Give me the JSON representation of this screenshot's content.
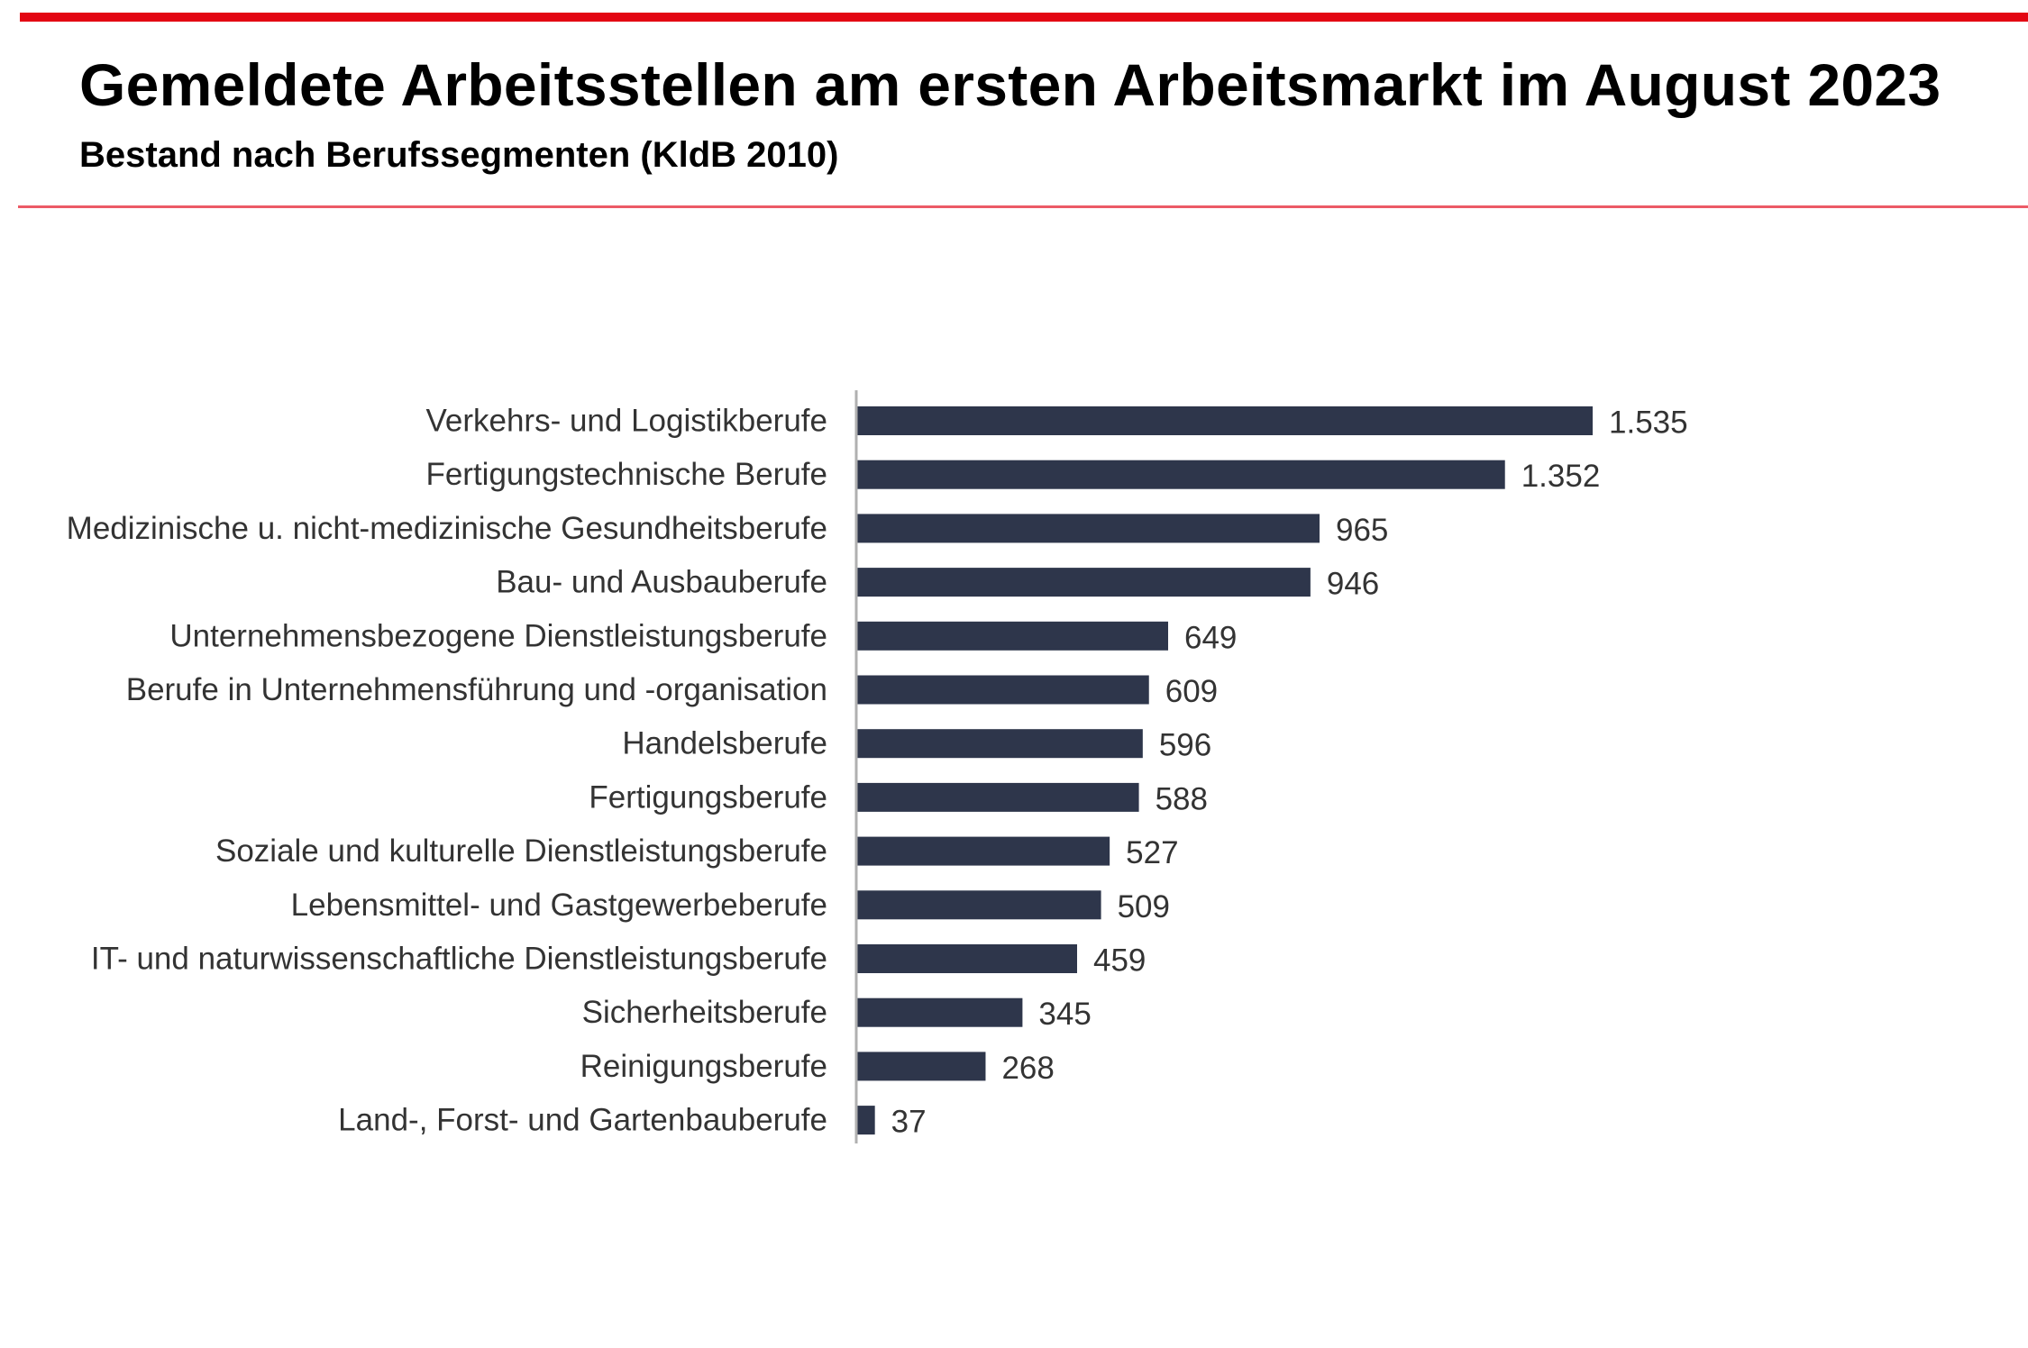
{
  "header": {
    "title": "Gemeldete Arbeitsstellen am ersten Arbeitsmarkt im August 2023",
    "subtitle": "Bestand nach Berufssegmenten (KldB 2010)"
  },
  "colors": {
    "accent": "#e30613",
    "divider": "#ec5a66",
    "bar": "#2e364b",
    "axis": "#b0b0b0",
    "text": "#333333"
  },
  "chart_data": {
    "type": "bar",
    "orientation": "horizontal",
    "title": "Gemeldete Arbeitsstellen am ersten Arbeitsmarkt im August 2023",
    "subtitle": "Bestand nach Berufssegmenten (KldB 2010)",
    "xlabel": "",
    "ylabel": "",
    "xlim": [
      0,
      1535
    ],
    "grid": false,
    "categories": [
      "Verkehrs- und Logistikberufe",
      "Fertigungstechnische Berufe",
      "Medizinische u. nicht-medizinische Gesundheitsberufe",
      "Bau- und Ausbauberufe",
      "Unternehmensbezogene Dienstleistungsberufe",
      "Berufe in Unternehmensführung und -organisation",
      "Handelsberufe",
      "Fertigungsberufe",
      "Soziale und kulturelle Dienstleistungsberufe",
      "Lebensmittel- und Gastgewerbeberufe",
      "IT- und naturwissenschaftliche Dienstleistungsberufe",
      "Sicherheitsberufe",
      "Reinigungsberufe",
      "Land-, Forst- und Gartenbauberufe"
    ],
    "values": [
      1535,
      1352,
      965,
      946,
      649,
      609,
      596,
      588,
      527,
      509,
      459,
      345,
      268,
      37
    ],
    "value_labels": [
      "1.535",
      "1.352",
      "965",
      "946",
      "649",
      "609",
      "596",
      "588",
      "527",
      "509",
      "459",
      "345",
      "268",
      "37"
    ]
  }
}
